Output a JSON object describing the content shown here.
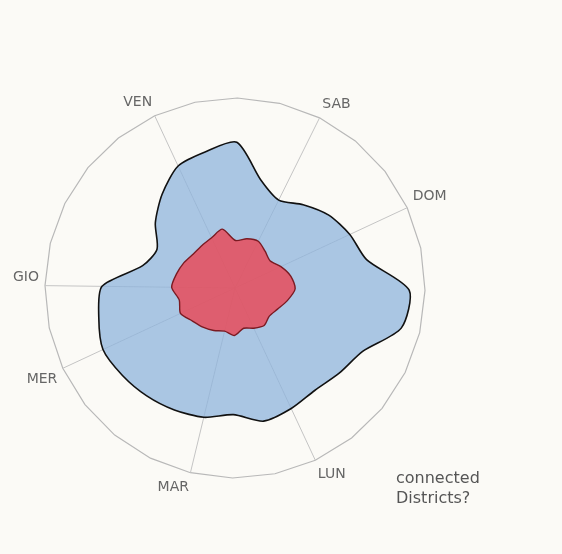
{
  "chart_data": {
    "type": "radar",
    "categories": [
      "VEN",
      null,
      null,
      null,
      "SAB",
      null,
      null,
      "DOM",
      null,
      null,
      null,
      null,
      null,
      null,
      "LUN",
      null,
      null,
      "MAR",
      null,
      null,
      null,
      "MER",
      null,
      "GIO",
      null,
      null,
      null,
      null
    ],
    "series": [
      {
        "color": "#8fb4dc",
        "values": [
          85,
          88,
          92,
          70,
          62,
          68,
          75,
          80,
          85,
          110,
          108,
          90,
          85,
          82,
          84,
          86,
          80,
          84,
          86,
          88,
          90,
          92,
          88,
          84,
          60,
          55,
          65,
          75
        ]
      },
      {
        "color": "#e84c5a",
        "values": [
          35,
          38,
          30,
          32,
          33,
          30,
          28,
          32,
          36,
          38,
          34,
          30,
          28,
          30,
          28,
          26,
          30,
          28,
          30,
          32,
          34,
          38,
          36,
          40,
          38,
          36,
          34,
          34
        ]
      }
    ],
    "ylim": [
      0,
      120
    ],
    "yticks": [
      90,
      120
    ],
    "grid": true,
    "tick_labels": false,
    "annotations": [
      "connected Districts?"
    ]
  }
}
